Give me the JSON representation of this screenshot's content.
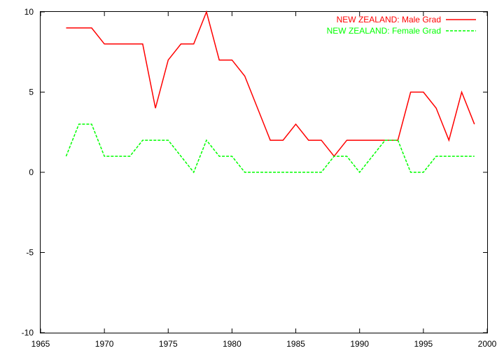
{
  "chart_data": {
    "type": "line",
    "title": "",
    "xlabel": "",
    "ylabel": "",
    "xlim": [
      1965,
      2000
    ],
    "ylim": [
      -10,
      10
    ],
    "x_ticks": [
      1965,
      1970,
      1975,
      1980,
      1985,
      1990,
      1995,
      2000
    ],
    "y_ticks": [
      -10,
      -5,
      0,
      5,
      10
    ],
    "grid": false,
    "legend_position": "top-right",
    "x": [
      1967,
      1968,
      1969,
      1970,
      1971,
      1972,
      1973,
      1974,
      1975,
      1976,
      1977,
      1978,
      1979,
      1980,
      1981,
      1982,
      1983,
      1984,
      1985,
      1986,
      1987,
      1988,
      1989,
      1990,
      1991,
      1992,
      1993,
      1994,
      1995,
      1996,
      1997,
      1998,
      1999
    ],
    "series": [
      {
        "name": "NEW ZEALAND: Male Grad",
        "color": "#ff0000",
        "style": "solid",
        "values": [
          9,
          9,
          9,
          8,
          8,
          8,
          8,
          4,
          7,
          8,
          8,
          10,
          7,
          7,
          6,
          4,
          2,
          2,
          3,
          2,
          2,
          1,
          2,
          2,
          2,
          2,
          2,
          5,
          5,
          4,
          2,
          5,
          3
        ]
      },
      {
        "name": "NEW ZEALAND: Female Grad",
        "color": "#00ff00",
        "style": "dashed",
        "values": [
          1,
          3,
          3,
          1,
          1,
          1,
          2,
          2,
          2,
          1,
          0,
          2,
          1,
          1,
          0,
          0,
          0,
          0,
          0,
          0,
          0,
          1,
          1,
          0,
          1,
          2,
          2,
          0,
          0,
          1,
          1,
          1,
          1
        ]
      }
    ]
  }
}
